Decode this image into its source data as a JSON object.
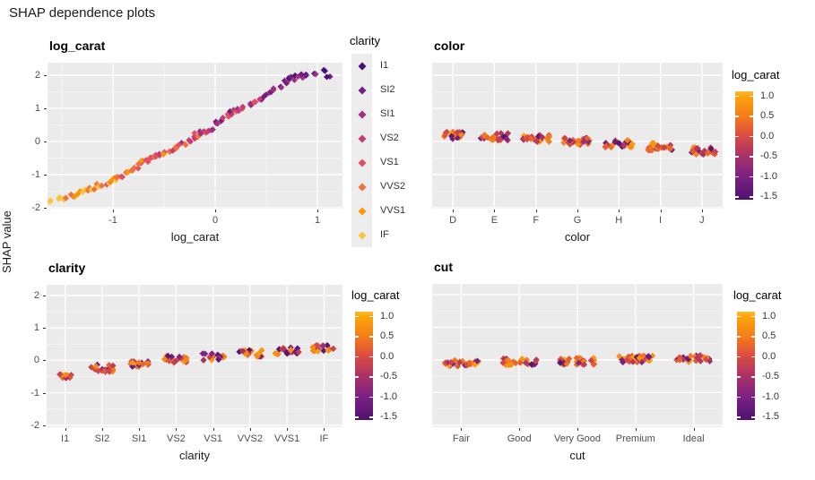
{
  "figure": {
    "title": "SHAP dependence plots",
    "ylabel": "SHAP value"
  },
  "palette": {
    "panel_bg": "#EBEBEB",
    "grid_major": "#FFFFFF",
    "grid_minor": "rgba(255,255,255,0.55)",
    "tick_color": "#333333",
    "axis_text": "#4D4D4D",
    "clarity_colors": [
      "#461078",
      "#721F81",
      "#9F2F7F",
      "#C53C74",
      "#E25060",
      "#F2703C",
      "#FB9706",
      "#F9C53C"
    ],
    "log_carat_gradient": [
      [
        0.0,
        "#FCBB31"
      ],
      [
        0.045,
        "#FBA50B"
      ],
      [
        0.23,
        "#F47D1A"
      ],
      [
        0.41,
        "#DA4B41"
      ],
      [
        0.6,
        "#A83168"
      ],
      [
        0.78,
        "#7C2282"
      ],
      [
        0.97,
        "#551572"
      ],
      [
        1.0,
        "#4E0F6E"
      ]
    ]
  },
  "legend_clarity": {
    "title": "clarity",
    "items": [
      "I1",
      "SI2",
      "SI1",
      "VS2",
      "VS1",
      "VVS2",
      "VVS1",
      "IF"
    ]
  },
  "colorbar": {
    "title": "log_carat",
    "tick_labels": [
      "1.0",
      "0.5",
      "0.0",
      "-0.5",
      "-1.0",
      "-1.5"
    ],
    "tick_values": [
      1.0,
      0.5,
      0.0,
      -0.5,
      -1.0,
      -1.5
    ],
    "top_value": 1.12,
    "bottom_value": -1.57
  },
  "chart_data": [
    {
      "id": "log_carat",
      "type": "scatter",
      "title": "log_carat",
      "xlabel": "log_carat",
      "ylabel": "SHAP value",
      "color_legend": "clarity",
      "xlim": [
        -1.64,
        1.245
      ],
      "ylim": [
        -2.03,
        2.38
      ],
      "x_tick_labels": [
        "-1",
        "0",
        "1"
      ],
      "x_tick_values": [
        -1,
        0,
        1
      ],
      "y_tick_labels": [
        "2",
        "1",
        "0",
        "-1",
        "-2"
      ],
      "y_tick_values": [
        2,
        1,
        0,
        -1,
        -2
      ],
      "points": [
        [
          -1.62,
          -1.82
        ],
        [
          -1.52,
          -1.72
        ],
        [
          -1.48,
          -1.73
        ],
        [
          -1.44,
          -1.7
        ],
        [
          -1.4,
          -1.66
        ],
        [
          -1.36,
          -1.62
        ],
        [
          -1.3,
          -1.56
        ],
        [
          -1.26,
          -1.48
        ],
        [
          -1.22,
          -1.43
        ],
        [
          -1.18,
          -1.39
        ],
        [
          -1.14,
          -1.35
        ],
        [
          -1.1,
          -1.31
        ],
        [
          -1.06,
          -1.26
        ],
        [
          -1.02,
          -1.21
        ],
        [
          -0.98,
          -1.11
        ],
        [
          -0.95,
          -1.06
        ],
        [
          -0.92,
          -1.02
        ],
        [
          -0.88,
          -0.97
        ],
        [
          -0.84,
          -0.91
        ],
        [
          -0.8,
          -0.83
        ],
        [
          -0.77,
          -0.76
        ],
        [
          -0.73,
          -0.66
        ],
        [
          -0.7,
          -0.62
        ],
        [
          -0.66,
          -0.55
        ],
        [
          -0.63,
          -0.5
        ],
        [
          -0.6,
          -0.46
        ],
        [
          -0.57,
          -0.43
        ],
        [
          -0.53,
          -0.4
        ],
        [
          -0.5,
          -0.36
        ],
        [
          -0.46,
          -0.31
        ],
        [
          -0.42,
          -0.24
        ],
        [
          -0.38,
          -0.16
        ],
        [
          -0.34,
          -0.1
        ],
        [
          -0.3,
          -0.04
        ],
        [
          -0.26,
          0.02
        ],
        [
          -0.22,
          0.1
        ],
        [
          -0.18,
          0.2
        ],
        [
          -0.14,
          0.26
        ],
        [
          -0.1,
          0.3
        ],
        [
          -0.06,
          0.32
        ],
        [
          -0.02,
          0.34
        ],
        [
          0.01,
          0.55
        ],
        [
          0.04,
          0.6
        ],
        [
          0.08,
          0.68
        ],
        [
          0.12,
          0.77
        ],
        [
          0.16,
          0.86
        ],
        [
          0.2,
          0.92
        ],
        [
          0.24,
          0.97
        ],
        [
          0.28,
          1.05
        ],
        [
          0.33,
          1.12
        ],
        [
          0.38,
          1.2
        ],
        [
          0.43,
          1.3
        ],
        [
          0.48,
          1.4
        ],
        [
          0.53,
          1.52
        ],
        [
          0.58,
          1.62
        ],
        [
          0.63,
          1.68
        ],
        [
          0.68,
          1.78
        ],
        [
          0.72,
          1.86
        ],
        [
          0.76,
          1.9
        ],
        [
          0.8,
          1.93
        ],
        [
          0.85,
          1.98
        ],
        [
          0.9,
          2.02
        ],
        [
          0.97,
          2.06
        ],
        [
          1.08,
          2.1
        ],
        [
          1.1,
          1.97
        ]
      ]
    },
    {
      "id": "color",
      "type": "strip",
      "title": "color",
      "xlabel": "color",
      "color_legend": "log_carat",
      "ylim": [
        -2.03,
        2.38
      ],
      "y_tick_values": [
        2,
        1,
        0,
        -1,
        -2
      ],
      "categories": [
        "D",
        "E",
        "F",
        "G",
        "H",
        "I",
        "J"
      ],
      "values": [
        0.18,
        0.14,
        0.08,
        0.01,
        -0.07,
        -0.16,
        -0.28
      ],
      "show_y_labels": false
    },
    {
      "id": "clarity",
      "type": "strip",
      "title": "clarity",
      "xlabel": "clarity",
      "color_legend": "log_carat",
      "ylim": [
        -2.06,
        2.33
      ],
      "y_tick_values": [
        2,
        1,
        0,
        -1,
        -2
      ],
      "y_tick_labels": [
        "2",
        "1",
        "0",
        "-1",
        "-2"
      ],
      "categories": [
        "I1",
        "SI2",
        "SI1",
        "VS2",
        "VS1",
        "VVS2",
        "VVS1",
        "IF"
      ],
      "values": [
        -0.54,
        -0.24,
        -0.1,
        0.04,
        0.11,
        0.22,
        0.3,
        0.36
      ],
      "show_y_labels": true
    },
    {
      "id": "cut",
      "type": "strip",
      "title": "cut",
      "xlabel": "cut",
      "color_legend": "log_carat",
      "ylim": [
        -2.06,
        2.33
      ],
      "y_tick_values": [
        2,
        1,
        0,
        -1,
        -2
      ],
      "categories": [
        "Fair",
        "Good",
        "Very Good",
        "Premium",
        "Ideal"
      ],
      "values": [
        -0.1,
        -0.06,
        -0.04,
        0.03,
        0.04
      ],
      "show_y_labels": false
    }
  ]
}
